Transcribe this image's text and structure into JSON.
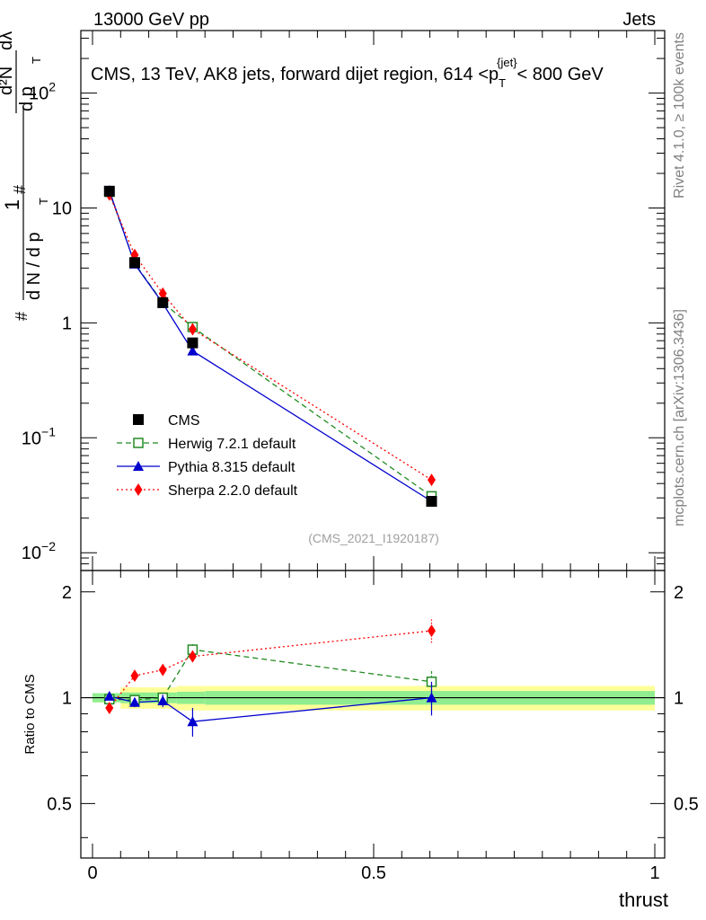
{
  "header": {
    "left": "13000 GeV pp",
    "right": "Jets"
  },
  "side_labels": {
    "rivet": "Rivet 4.1.0, ≥ 100k events",
    "mcplots": "mcplots.cern.ch [arXiv:1306.3436]"
  },
  "chart_data": {
    "type": "line",
    "title": "CMS, 13 TeV, AK8 jets, forward dijet region, 614 <p_T^{jet}< 800 GeV",
    "title_parts": {
      "main": "CMS, 13 TeV, AK8 jets, forward dijet region, 614 <p",
      "sub": "T",
      "sup": "{jet}",
      "tail": "< 800 GeV"
    },
    "watermark": "(CMS_2021_I1920187)",
    "xlabel": "thrust",
    "ylabel_top": "1/(dN/dp_T) d²N/(dp_T dλ)",
    "ylabel_parts": {
      "num1": "1",
      "den1": "d N / d p",
      "sub1": "T",
      "num2": "d²N",
      "den2": "d p",
      "sub2": "T",
      "tail": "dλ",
      "hash": "#"
    },
    "ylabel_ratio": "Ratio to CMS",
    "xlim": [
      0,
      1
    ],
    "ylim_top": [
      0.007,
      350
    ],
    "yscale_top": "log",
    "ylim_ratio": [
      0.35,
      2.3
    ],
    "yscale_ratio": "log",
    "x_ticks": [
      {
        "value": 0,
        "label": "0"
      },
      {
        "value": 0.5,
        "label": "0.5"
      },
      {
        "value": 1,
        "label": "1"
      }
    ],
    "y_ticks_top": [
      {
        "value": 0.01,
        "base": "10",
        "exp": "−2"
      },
      {
        "value": 0.1,
        "base": "10",
        "exp": "−1"
      },
      {
        "value": 1,
        "base": "1",
        "exp": ""
      },
      {
        "value": 10,
        "base": "10",
        "exp": ""
      },
      {
        "value": 100,
        "base": "10",
        "exp": "2"
      }
    ],
    "y_ticks_ratio": [
      {
        "value": 0.5,
        "label": "0.5"
      },
      {
        "value": 1,
        "label": "1"
      },
      {
        "value": 2,
        "label": "2"
      }
    ],
    "bins": [
      {
        "lo": 0.0,
        "hi": 0.05
      },
      {
        "lo": 0.05,
        "hi": 0.1
      },
      {
        "lo": 0.1,
        "hi": 0.15
      },
      {
        "lo": 0.15,
        "hi": 0.2
      },
      {
        "lo": 0.2,
        "hi": 1.0
      }
    ],
    "uncertainty_band": {
      "stat_color": "#90ee90",
      "total_color": "#ffff99",
      "stat": [
        [
          0.97,
          1.03
        ],
        [
          0.965,
          1.035
        ],
        [
          0.965,
          1.035
        ],
        [
          0.96,
          1.04
        ],
        [
          0.955,
          1.045
        ]
      ],
      "total": [
        [
          0.97,
          1.03
        ],
        [
          0.93,
          1.07
        ],
        [
          0.93,
          1.07
        ],
        [
          0.92,
          1.08
        ],
        [
          0.92,
          1.08
        ]
      ]
    },
    "series": [
      {
        "name": "CMS",
        "color": "#000000",
        "marker": "square-filled",
        "line": "none",
        "x": [
          0.03,
          0.075,
          0.125,
          0.178,
          0.603
        ],
        "y": [
          14.0,
          3.35,
          1.5,
          0.67,
          0.028
        ],
        "ratio": [
          1,
          1,
          1,
          1,
          1
        ],
        "ratio_err": [
          0,
          0,
          0,
          0,
          0
        ]
      },
      {
        "name": "Herwig 7.2.1 default",
        "color": "#228b22",
        "marker": "square-open",
        "line": "dashed",
        "x": [
          0.03,
          0.075,
          0.125,
          0.178,
          0.603
        ],
        "y": [
          13.8,
          3.3,
          1.5,
          0.92,
          0.031
        ],
        "ratio": [
          0.99,
          0.985,
          1.0,
          1.37,
          1.11
        ],
        "ratio_err": [
          0.01,
          0.02,
          0.03,
          0.05,
          0.08
        ]
      },
      {
        "name": "Pythia 8.315 default",
        "color": "#0000cd",
        "marker": "triangle-filled",
        "line": "solid",
        "x": [
          0.03,
          0.075,
          0.125,
          0.178,
          0.603
        ],
        "y": [
          14.2,
          3.25,
          1.48,
          0.57,
          0.028
        ],
        "ratio": [
          1.01,
          0.97,
          0.98,
          0.855,
          1.0
        ],
        "ratio_err": [
          0.01,
          0.03,
          0.04,
          0.08,
          0.11
        ]
      },
      {
        "name": "Sherpa 2.2.0 default",
        "color": "#ff0000",
        "marker": "diamond-filled",
        "line": "dotted",
        "x": [
          0.03,
          0.075,
          0.125,
          0.178,
          0.603
        ],
        "y": [
          13.1,
          3.9,
          1.8,
          0.88,
          0.043
        ],
        "ratio": [
          0.935,
          1.155,
          1.2,
          1.31,
          1.55
        ],
        "ratio_err": [
          0.01,
          0.03,
          0.04,
          0.05,
          0.12
        ]
      }
    ]
  }
}
